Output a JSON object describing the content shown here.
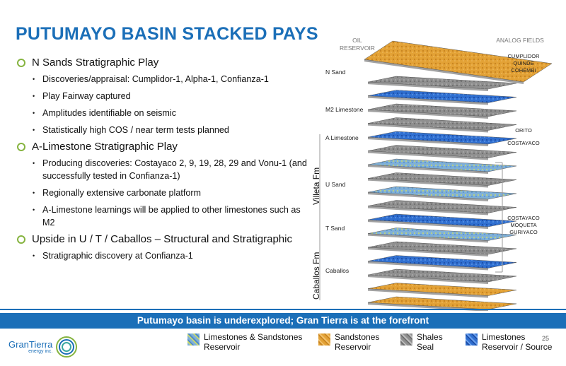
{
  "title": "PUTUMAYO BASIN STACKED PAYS",
  "bullets": {
    "b1": "N Sands Stratigraphic Play",
    "b1_sub": [
      "Discoveries/appraisal: Cumplidor-1, Alpha-1, Confianza-1",
      "Play Fairway captured",
      "Amplitudes identifiable on seismic",
      "Statistically high COS / near term tests planned"
    ],
    "b2": "A-Limestone Stratigraphic Play",
    "b2_sub": [
      "Producing discoveries: Costayaco 2, 9, 19, 28, 29 and Vonu-1 (and successfully tested in Confianza-1)",
      "Regionally extensive carbonate platform",
      "A-Limestone learnings will be applied to other limestones such as M2"
    ],
    "b3": "Upside in U / T / Caballos – Structural and Stratigraphic",
    "b3_sub": [
      "Stratigraphic discovery at Confianza-1"
    ]
  },
  "diagram": {
    "oil_header": "OIL\nRESERVOIR",
    "analog_header": "ANALOG FIELDS",
    "reservoirs": [
      "N Sand",
      "M2 Limestone",
      "A Limestone",
      "U Sand",
      "T Sand",
      "Caballos"
    ],
    "analogs": [
      "CUMPLIDOR\nQUINDE\nCOHEMBI",
      "ORITO\nCOSTAYACO",
      "COSTAYACO\nMOQUETA\nGURIYACO"
    ],
    "fm_villeta": "Villeta Fm",
    "fm_caballos": "Caballos Fm"
  },
  "banner": "Putumayo basin is underexplored; Gran Tierra is at the forefront",
  "legend": [
    {
      "l1": "Limestones & Sandstones",
      "l2": "Reservoir",
      "color": "#7fb0d8"
    },
    {
      "l1": "Sandstones",
      "l2": "Reservoir",
      "color": "#e6a43a"
    },
    {
      "l1": "Shales",
      "l2": "Seal",
      "color": "#8a8a8a"
    },
    {
      "l1": "Limestones",
      "l2": "Reservoir / Source",
      "color": "#2f6fd0"
    }
  ],
  "logo": {
    "name": "GranTierra",
    "sub": "energy inc."
  },
  "page_number": "25",
  "colors": {
    "brand_blue": "#1b6fb8",
    "bullet_green": "#86b440"
  }
}
